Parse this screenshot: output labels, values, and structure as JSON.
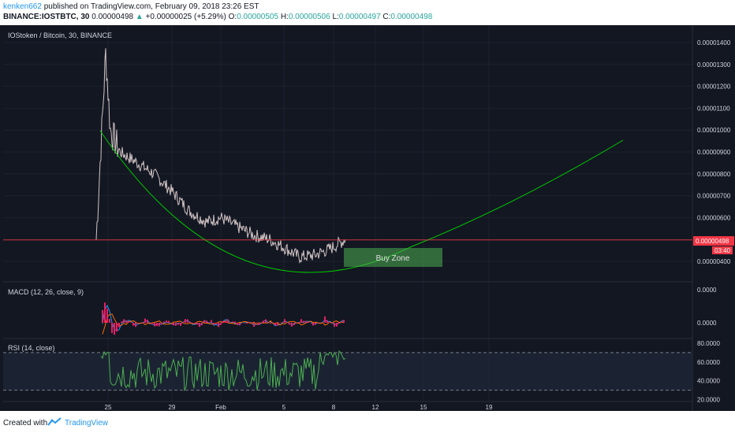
{
  "header": {
    "author": "kenken662",
    "published_text": " published on TradingView.com, February 09, 2018 23:26 EST",
    "symbol": "BINANCE:IOSTBTC, 30",
    "last": "0.00000498",
    "change_arrow": "▲",
    "change": "+0.00000025 (+5.29%)",
    "o_label": "O:",
    "o_value": "0.00000505",
    "h_label": "H:",
    "h_value": "0.00000506",
    "l_label": "L:",
    "l_value": "0.00000497",
    "c_label": "C:",
    "c_value": "0.00000498"
  },
  "chart_data": [
    {
      "type": "line",
      "title": "IOStoken / Bitcoin, 30, BINANCE",
      "xlabel": "",
      "ylabel": "",
      "x_ticks": [
        "25",
        "29",
        "Feb",
        "5",
        "8",
        "12",
        "15",
        "19"
      ],
      "y_ticks": [
        "0.00001400",
        "0.00001300",
        "0.00001200",
        "0.00001100",
        "0.00001000",
        "0.00000900",
        "0.00000800",
        "0.00000700",
        "0.00000600",
        "0.00000500",
        "0.00000400"
      ],
      "ylim": [
        3.3e-06,
        1.48e-05
      ],
      "last_price_label": "0.00000498",
      "countdown_label": "03:40",
      "last_price": 4.98e-06,
      "price_series_note": "",
      "series": [
        {
          "values_x": [
            "Jan 24",
            "Jan 25",
            "Jan 25",
            "Jan 26",
            "Jan 27",
            "Jan 28",
            "Jan 29",
            "Jan 30",
            "Jan 31",
            "Feb 1",
            "Feb 2",
            "Feb 3",
            "Feb 4",
            "Feb 5",
            "Feb 6",
            "Feb 7",
            "Feb 8",
            "Feb 9"
          ],
          "values": [
            5e-06,
            1.35e-05,
            1e-05,
            9e-06,
            8.6e-06,
            8e-06,
            7.2e-06,
            6.3e-06,
            5.8e-06,
            6e-06,
            5.6e-06,
            5.2e-06,
            5e-06,
            4.6e-06,
            4.2e-06,
            4.3e-06,
            4.6e-06,
            5e-06
          ]
        }
      ],
      "annotations": [
        {
          "text": "Buy Zone",
          "color": "#4caf50"
        }
      ],
      "curve_color": "#00c800",
      "grid": true
    },
    {
      "type": "line",
      "title": "MACD (12, 26, close, 9)",
      "y_ticks": [
        "0.0000",
        "0.0000"
      ],
      "colors": {
        "macd": "#2196f3",
        "signal": "#ff6d00",
        "hist": "#e91e63"
      }
    },
    {
      "type": "line",
      "title": "RSI (14, close)",
      "y_ticks": [
        "80.0000",
        "60.0000",
        "40.0000",
        "20.0000"
      ],
      "ylim": [
        18,
        85
      ],
      "bands": [
        70,
        30
      ],
      "color": "#4caf50"
    }
  ],
  "footer": {
    "created_with": "Created with",
    "brand": "TradingView"
  }
}
